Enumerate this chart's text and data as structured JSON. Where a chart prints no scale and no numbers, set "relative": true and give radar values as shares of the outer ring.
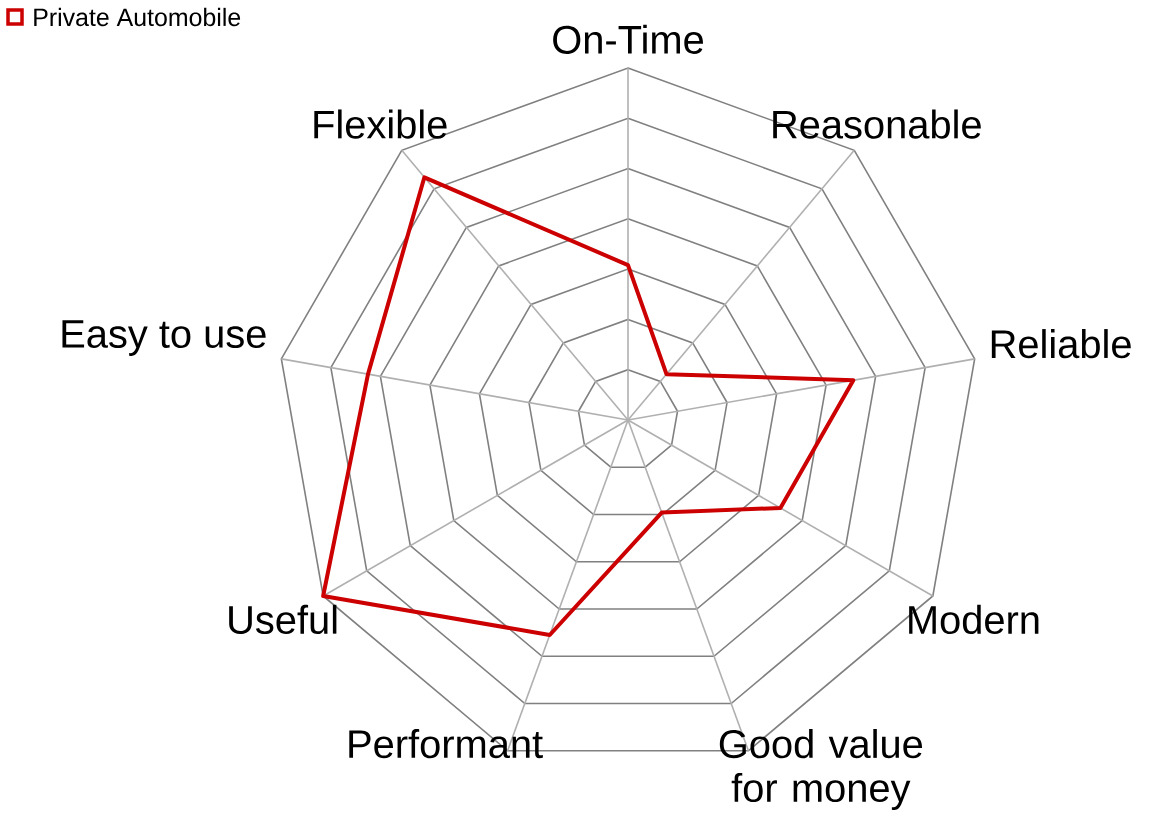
{
  "chart_data": {
    "type": "radar",
    "relative": true,
    "categories": [
      "On-Time",
      "Reasonable",
      "Reliable",
      "Modern",
      "Good value for money",
      "Performant",
      "Useful",
      "Easy to use",
      "Flexible"
    ],
    "series": [
      {
        "name": "Private Automobile",
        "color": "#cc0000",
        "values": [
          0.44,
          0.17,
          0.65,
          0.5,
          0.28,
          0.65,
          1.0,
          0.75,
          0.9
        ]
      }
    ],
    "grid": true,
    "legend": "top left",
    "marker": "none",
    "line_style": "solid"
  }
}
